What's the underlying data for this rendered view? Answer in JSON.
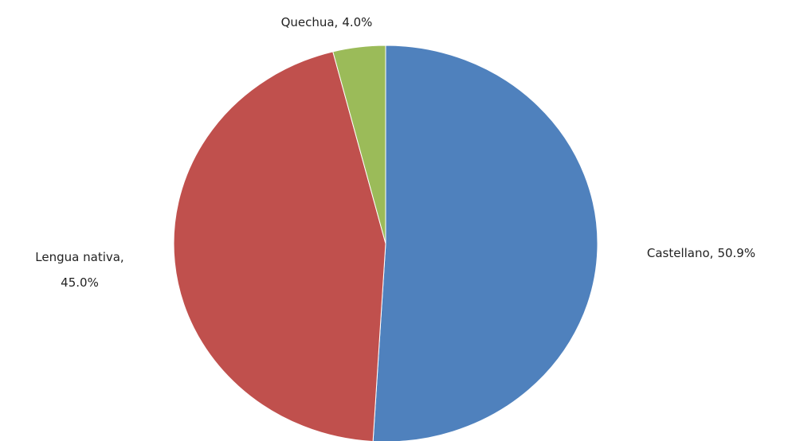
{
  "chart_data": {
    "type": "pie",
    "categories": [
      "Castellano,",
      "Lengua nativa,",
      "Quechua,"
    ],
    "values": [
      50.9,
      45.0,
      4.0
    ],
    "value_labels": [
      "50.9%",
      "45.0%",
      "4.0%"
    ],
    "colors": [
      "#4f81bd",
      "#c0504d",
      "#9bbb59"
    ]
  }
}
